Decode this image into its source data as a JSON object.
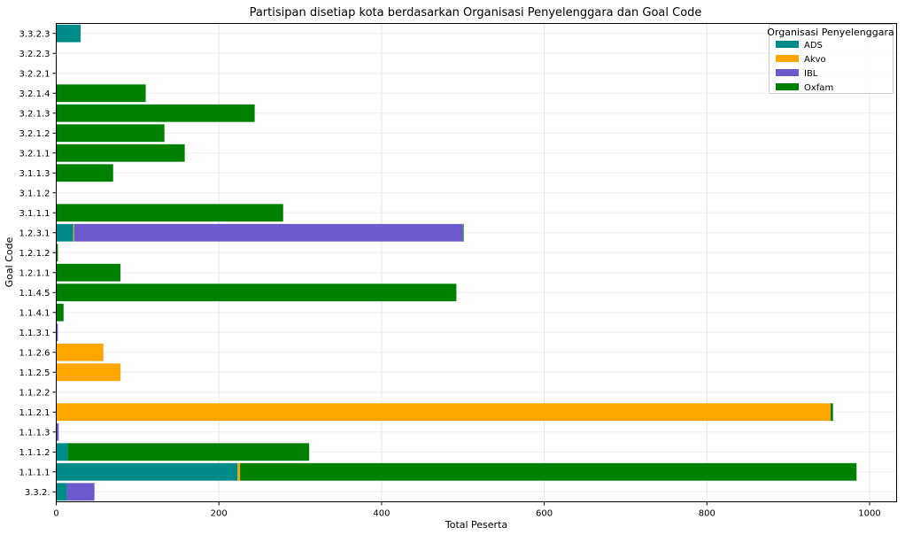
{
  "chart_data": {
    "type": "bar",
    "orientation": "horizontal",
    "stacked": true,
    "title": "Partisipan disetiap kota berdasarkan Organisasi Penyelenggara dan Goal Code",
    "xlabel": "Total Peserta",
    "ylabel": "Goal Code",
    "xlim": [
      0,
      1035
    ],
    "xticks": [
      0,
      200,
      400,
      600,
      800,
      1000
    ],
    "grid": true,
    "legend": {
      "title": "Organisasi Penyelenggara",
      "position": "top-right"
    },
    "categories": [
      "3.3.2.",
      "1.1.1.1",
      "1.1.1.2",
      "1.1.1.3",
      "1.1.2.1",
      "1.1.2.2",
      "1.1.2.5",
      "1.1.2.6",
      "1.1.3.1",
      "1.1.4.1",
      "1.1.4.5",
      "1.2.1.1",
      "1.2.1.2",
      "1.2.3.1",
      "3.1.1.1",
      "3.1.1.2",
      "3.1.1.3",
      "3.2.1.1",
      "3.2.1.2",
      "3.2.1.3",
      "3.2.1.4",
      "3.2.2.1",
      "3.2.2.3",
      "3.3.2.3"
    ],
    "series": [
      {
        "name": "ADS",
        "color": "#008b8b",
        "values": [
          13,
          223,
          14,
          0,
          0,
          0,
          0,
          0,
          0,
          0,
          0,
          0,
          0,
          21,
          0,
          0,
          0,
          0,
          0,
          0,
          0,
          0,
          0,
          30
        ]
      },
      {
        "name": "Akvo",
        "color": "#ffa500",
        "values": [
          0,
          3,
          0,
          0,
          952,
          0,
          79,
          58,
          0,
          0,
          0,
          0,
          0,
          1,
          0,
          0,
          0,
          0,
          0,
          0,
          0,
          0,
          0,
          0
        ]
      },
      {
        "name": "IBL",
        "color": "#6a5acd",
        "values": [
          34,
          0,
          0,
          3,
          0,
          0,
          0,
          0,
          2,
          0,
          0,
          0,
          0,
          478,
          0,
          0,
          0,
          0,
          0,
          0,
          0,
          0,
          0,
          0
        ]
      },
      {
        "name": "Oxfam",
        "color": "#008000",
        "values": [
          0,
          758,
          297,
          0,
          3,
          0,
          0,
          0,
          0,
          9,
          492,
          79,
          2,
          1,
          279,
          0,
          70,
          158,
          133,
          244,
          110,
          0,
          0,
          0
        ]
      }
    ]
  }
}
